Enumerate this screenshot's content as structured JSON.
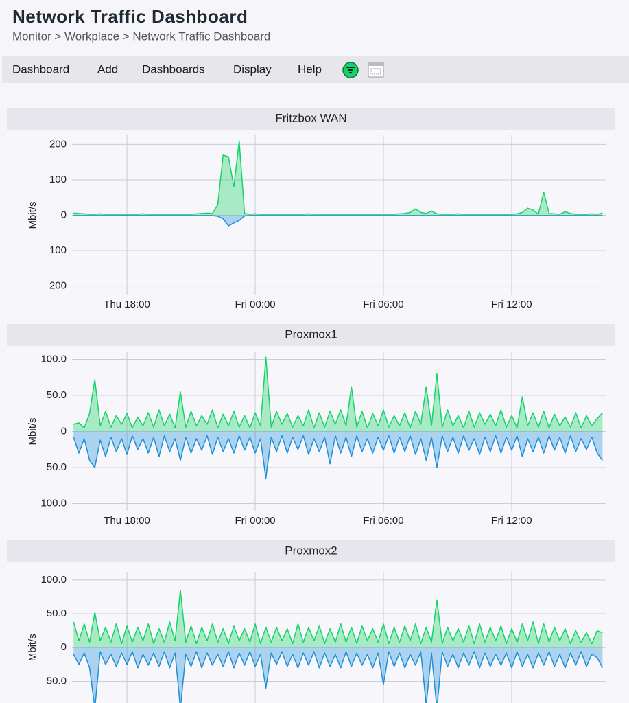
{
  "header": {
    "title": "Network Traffic Dashboard",
    "breadcrumb": "Monitor > Workplace > Network Traffic Dashboard"
  },
  "menu": [
    "Dashboard",
    "Add",
    "Dashboards",
    "Display",
    "Help"
  ],
  "chart_data": [
    {
      "type": "area",
      "title": "Fritzbox WAN",
      "y_label": "Mbit/s",
      "x": [
        15.5,
        15.75,
        16,
        16.25,
        16.5,
        16.75,
        17,
        17.25,
        17.5,
        17.75,
        18,
        18.25,
        18.5,
        18.75,
        19,
        19.25,
        19.5,
        19.75,
        20,
        20.25,
        20.5,
        20.75,
        21,
        21.25,
        21.5,
        21.75,
        22,
        22.25,
        22.5,
        22.75,
        23,
        23.25,
        23.5,
        23.75,
        24,
        24.25,
        24.5,
        24.75,
        25,
        25.25,
        25.5,
        25.75,
        26,
        26.25,
        26.5,
        26.75,
        27,
        27.25,
        27.5,
        27.75,
        28,
        28.25,
        28.5,
        28.75,
        29,
        29.25,
        29.5,
        29.75,
        30,
        30.25,
        30.5,
        30.75,
        31,
        31.25,
        31.5,
        31.75,
        32,
        32.25,
        32.5,
        32.75,
        33,
        33.25,
        33.5,
        33.75,
        34,
        34.25,
        34.5,
        34.75,
        35,
        35.25,
        35.5,
        35.75,
        36,
        36.25,
        36.5,
        36.75,
        37,
        37.25,
        37.5,
        37.75,
        38,
        38.25,
        38.5,
        38.75,
        39,
        39.25,
        39.5,
        39.75,
        40,
        40.25
      ],
      "xlim": [
        15.43,
        40.43
      ],
      "xticks": [
        {
          "value": 18,
          "label": "Thu 18:00"
        },
        {
          "value": 24,
          "label": "Fri 00:00"
        },
        {
          "value": 30,
          "label": "Fri 06:00"
        },
        {
          "value": 36,
          "label": "Fri 12:00"
        }
      ],
      "ylim": [
        -226,
        226
      ],
      "yticks": [
        200,
        100,
        0,
        {
          "value": -100,
          "label": "100"
        },
        {
          "value": -200,
          "label": "200"
        }
      ],
      "grid": true,
      "series": [
        {
          "color": "#15d364",
          "values": [
            6,
            5,
            4,
            3,
            3,
            4,
            3,
            3,
            3,
            3,
            3,
            3,
            3,
            4,
            3,
            3,
            3,
            3,
            3,
            3,
            3,
            3,
            3,
            4,
            5,
            6,
            5,
            30,
            170,
            165,
            80,
            210,
            5,
            3,
            4,
            3,
            3,
            3,
            3,
            3,
            3,
            3,
            3,
            3,
            4,
            3,
            3,
            3,
            3,
            3,
            3,
            3,
            3,
            3,
            3,
            3,
            3,
            3,
            3,
            3,
            3,
            4,
            5,
            8,
            18,
            8,
            5,
            12,
            4,
            3,
            3,
            3,
            4,
            3,
            3,
            3,
            3,
            3,
            3,
            3,
            3,
            3,
            3,
            4,
            8,
            20,
            15,
            3,
            65,
            5,
            4,
            3,
            10,
            5,
            3,
            3,
            3,
            4,
            3,
            6
          ]
        },
        {
          "color": "#1c8fd8",
          "values": [
            -1,
            -1,
            -1,
            -1,
            -1,
            -1,
            -1,
            -1,
            -1,
            -1,
            -1,
            -1,
            -1,
            -1,
            -1,
            -1,
            -1,
            -1,
            -1,
            -1,
            -1,
            -1,
            -1,
            -1,
            -1,
            -1,
            -1,
            -3,
            -10,
            -30,
            -22,
            -15,
            -2,
            -1,
            -1,
            -1,
            -1,
            -1,
            -1,
            -1,
            -1,
            -1,
            -1,
            -1,
            -1,
            -1,
            -1,
            -1,
            -1,
            -1,
            -1,
            -1,
            -1,
            -1,
            -1,
            -1,
            -1,
            -1,
            -1,
            -1,
            -1,
            -1,
            -1,
            -1,
            -1,
            -1,
            -1,
            -1,
            -1,
            -1,
            -1,
            -1,
            -1,
            -1,
            -1,
            -1,
            -1,
            -1,
            -1,
            -1,
            -1,
            -1,
            -1,
            -1,
            -1,
            -1,
            -1,
            -1,
            -1,
            -1,
            -1,
            -1,
            -1,
            -1,
            -1,
            -1,
            -1,
            -1,
            -1,
            -1
          ]
        }
      ]
    },
    {
      "type": "area",
      "title": "Proxmox1",
      "y_label": "Mbit/s",
      "x": [
        15.5,
        15.75,
        16,
        16.25,
        16.5,
        16.75,
        17,
        17.25,
        17.5,
        17.75,
        18,
        18.25,
        18.5,
        18.75,
        19,
        19.25,
        19.5,
        19.75,
        20,
        20.25,
        20.5,
        20.75,
        21,
        21.25,
        21.5,
        21.75,
        22,
        22.25,
        22.5,
        22.75,
        23,
        23.25,
        23.5,
        23.75,
        24,
        24.25,
        24.5,
        24.75,
        25,
        25.25,
        25.5,
        25.75,
        26,
        26.25,
        26.5,
        26.75,
        27,
        27.25,
        27.5,
        27.75,
        28,
        28.25,
        28.5,
        28.75,
        29,
        29.25,
        29.5,
        29.75,
        30,
        30.25,
        30.5,
        30.75,
        31,
        31.25,
        31.5,
        31.75,
        32,
        32.25,
        32.5,
        32.75,
        33,
        33.25,
        33.5,
        33.75,
        34,
        34.25,
        34.5,
        34.75,
        35,
        35.25,
        35.5,
        35.75,
        36,
        36.25,
        36.5,
        36.75,
        37,
        37.25,
        37.5,
        37.75,
        38,
        38.25,
        38.5,
        38.75,
        39,
        39.25,
        39.5,
        39.75,
        40,
        40.25
      ],
      "xlim": [
        15.43,
        40.43
      ],
      "xticks": [
        {
          "value": 18,
          "label": "Thu 18:00"
        },
        {
          "value": 24,
          "label": "Fri 00:00"
        },
        {
          "value": 30,
          "label": "Fri 06:00"
        },
        {
          "value": 36,
          "label": "Fri 12:00"
        }
      ],
      "ylim": [
        -111,
        110
      ],
      "yticks": [
        {
          "value": 100,
          "label": "100.0"
        },
        {
          "value": 50,
          "label": "50.0"
        },
        0,
        {
          "value": -50,
          "label": "50.0"
        },
        {
          "value": -100,
          "label": "100.0"
        }
      ],
      "grid": true,
      "series": [
        {
          "color": "#15d364",
          "values": [
            10,
            12,
            5,
            25,
            72,
            8,
            28,
            6,
            22,
            10,
            25,
            5,
            20,
            8,
            26,
            6,
            30,
            8,
            24,
            5,
            55,
            6,
            28,
            8,
            22,
            10,
            30,
            5,
            24,
            8,
            28,
            6,
            22,
            5,
            26,
            8,
            103,
            6,
            28,
            10,
            25,
            6,
            22,
            8,
            30,
            5,
            26,
            6,
            28,
            10,
            30,
            8,
            62,
            6,
            28,
            5,
            25,
            8,
            30,
            6,
            22,
            8,
            26,
            5,
            28,
            10,
            62,
            8,
            80,
            6,
            30,
            8,
            22,
            5,
            28,
            6,
            26,
            10,
            24,
            8,
            30,
            6,
            22,
            5,
            48,
            8,
            26,
            6,
            28,
            5,
            24,
            8,
            20,
            6,
            26,
            5,
            22,
            8,
            18,
            26
          ]
        },
        {
          "color": "#1c8fd8",
          "values": [
            -8,
            -30,
            -10,
            -40,
            -50,
            -12,
            -35,
            -8,
            -28,
            -10,
            -32,
            -6,
            -25,
            -10,
            -30,
            -8,
            -35,
            -6,
            -28,
            -10,
            -40,
            -8,
            -30,
            -10,
            -26,
            -6,
            -32,
            -8,
            -28,
            -10,
            -30,
            -6,
            -26,
            -8,
            -30,
            -10,
            -65,
            -8,
            -28,
            -6,
            -30,
            -8,
            -25,
            -6,
            -32,
            -10,
            -28,
            -8,
            -45,
            -6,
            -30,
            -8,
            -35,
            -6,
            -28,
            -10,
            -30,
            -8,
            -26,
            -6,
            -30,
            -8,
            -28,
            -6,
            -32,
            -10,
            -40,
            -8,
            -50,
            -6,
            -28,
            -8,
            -30,
            -6,
            -26,
            -10,
            -32,
            -8,
            -28,
            -6,
            -30,
            -8,
            -26,
            -6,
            -35,
            -10,
            -28,
            -8,
            -30,
            -6,
            -26,
            -8,
            -30,
            -6,
            -28,
            -10,
            -25,
            -8,
            -30,
            -40
          ]
        }
      ]
    },
    {
      "type": "area",
      "title": "Proxmox2",
      "y_label": "Mbit/s",
      "x": [
        15.5,
        15.75,
        16,
        16.25,
        16.5,
        16.75,
        17,
        17.25,
        17.5,
        17.75,
        18,
        18.25,
        18.5,
        18.75,
        19,
        19.25,
        19.5,
        19.75,
        20,
        20.25,
        20.5,
        20.75,
        21,
        21.25,
        21.5,
        21.75,
        22,
        22.25,
        22.5,
        22.75,
        23,
        23.25,
        23.5,
        23.75,
        24,
        24.25,
        24.5,
        24.75,
        25,
        25.25,
        25.5,
        25.75,
        26,
        26.25,
        26.5,
        26.75,
        27,
        27.25,
        27.5,
        27.75,
        28,
        28.25,
        28.5,
        28.75,
        29,
        29.25,
        29.5,
        29.75,
        30,
        30.25,
        30.5,
        30.75,
        31,
        31.25,
        31.5,
        31.75,
        32,
        32.25,
        32.5,
        32.75,
        33,
        33.25,
        33.5,
        33.75,
        34,
        34.25,
        34.5,
        34.75,
        35,
        35.25,
        35.5,
        35.75,
        36,
        36.25,
        36.5,
        36.75,
        37,
        37.25,
        37.5,
        37.75,
        38,
        38.25,
        38.5,
        38.75,
        39,
        39.25,
        39.5,
        39.75,
        40,
        40.25
      ],
      "xlim": [
        15.43,
        40.43
      ],
      "xticks": [
        18,
        24,
        30,
        36
      ],
      "xtick_labels": false,
      "ylim": [
        -82,
        112
      ],
      "yticks": [
        {
          "value": 100,
          "label": "100.0"
        },
        {
          "value": 50,
          "label": "50.0"
        },
        0,
        {
          "value": -50,
          "label": "50.0"
        }
      ],
      "grid": true,
      "series": [
        {
          "color": "#15d364",
          "values": [
            38,
            10,
            35,
            8,
            52,
            10,
            30,
            8,
            35,
            6,
            32,
            8,
            30,
            10,
            35,
            6,
            28,
            8,
            38,
            10,
            85,
            8,
            32,
            6,
            30,
            10,
            35,
            8,
            28,
            6,
            32,
            10,
            28,
            8,
            35,
            6,
            30,
            8,
            30,
            10,
            28,
            6,
            35,
            8,
            30,
            10,
            32,
            6,
            28,
            8,
            35,
            8,
            30,
            6,
            32,
            10,
            28,
            8,
            35,
            6,
            30,
            8,
            32,
            10,
            35,
            6,
            30,
            8,
            70,
            6,
            30,
            10,
            28,
            8,
            32,
            6,
            35,
            8,
            30,
            10,
            32,
            6,
            28,
            8,
            35,
            10,
            38,
            6,
            35,
            8,
            30,
            10,
            28,
            6,
            25,
            8,
            22,
            6,
            25,
            22
          ]
        },
        {
          "color": "#1c8fd8",
          "values": [
            -10,
            -25,
            -8,
            -30,
            -90,
            -6,
            -25,
            -10,
            -28,
            -8,
            -25,
            -6,
            -30,
            -10,
            -26,
            -8,
            -28,
            -6,
            -30,
            -8,
            -90,
            -10,
            -28,
            -6,
            -30,
            -8,
            -26,
            -10,
            -28,
            -6,
            -30,
            -8,
            -26,
            -6,
            -28,
            -10,
            -60,
            -8,
            -25,
            -6,
            -28,
            -10,
            -30,
            -8,
            -26,
            -6,
            -30,
            -8,
            -28,
            -10,
            -30,
            -6,
            -28,
            -8,
            -26,
            -10,
            -30,
            -8,
            -55,
            -6,
            -28,
            -8,
            -30,
            -10,
            -26,
            -6,
            -85,
            -8,
            -90,
            -6,
            -28,
            -10,
            -30,
            -8,
            -26,
            -6,
            -30,
            -8,
            -28,
            -10,
            -26,
            -8,
            -30,
            -6,
            -28,
            -10,
            -30,
            -8,
            -26,
            -6,
            -28,
            -10,
            -30,
            -8,
            -26,
            -6,
            -28,
            -10,
            -15,
            -30
          ]
        }
      ]
    }
  ]
}
